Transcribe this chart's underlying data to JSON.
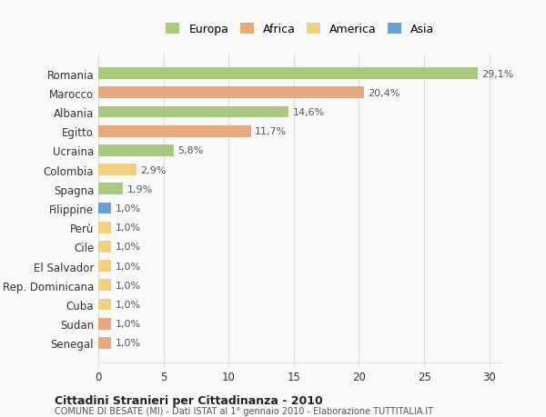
{
  "countries": [
    "Romania",
    "Marocco",
    "Albania",
    "Egitto",
    "Ucraina",
    "Colombia",
    "Spagna",
    "Filippine",
    "Perù",
    "Cile",
    "El Salvador",
    "Rep. Dominicana",
    "Cuba",
    "Sudan",
    "Senegal"
  ],
  "values": [
    29.1,
    20.4,
    14.6,
    11.7,
    5.8,
    2.9,
    1.9,
    1.0,
    1.0,
    1.0,
    1.0,
    1.0,
    1.0,
    1.0,
    1.0
  ],
  "labels": [
    "29,1%",
    "20,4%",
    "14,6%",
    "11,7%",
    "5,8%",
    "2,9%",
    "1,9%",
    "1,0%",
    "1,0%",
    "1,0%",
    "1,0%",
    "1,0%",
    "1,0%",
    "1,0%",
    "1,0%"
  ],
  "colors": [
    "#a8c97f",
    "#e8a97e",
    "#a8c97f",
    "#e8a97e",
    "#a8c97f",
    "#f0d080",
    "#a8c97f",
    "#6b9fd4",
    "#f0d080",
    "#f0d080",
    "#f0d080",
    "#f0d080",
    "#f0d080",
    "#e8a97e",
    "#e8a97e"
  ],
  "legend_labels": [
    "Europa",
    "Africa",
    "America",
    "Asia"
  ],
  "legend_colors": [
    "#a8c97f",
    "#e8a97e",
    "#f0d080",
    "#6b9fd4"
  ],
  "title": "Cittadini Stranieri per Cittadinanza - 2010",
  "subtitle": "COMUNE DI BESATE (MI) - Dati ISTAT al 1° gennaio 2010 - Elaborazione TUTTITALIA.IT",
  "xlim": [
    0,
    31
  ],
  "xticks": [
    0,
    5,
    10,
    15,
    20,
    25,
    30
  ],
  "bg_color": "#f9f9f9",
  "grid_color": "#dddddd",
  "bar_height": 0.6
}
